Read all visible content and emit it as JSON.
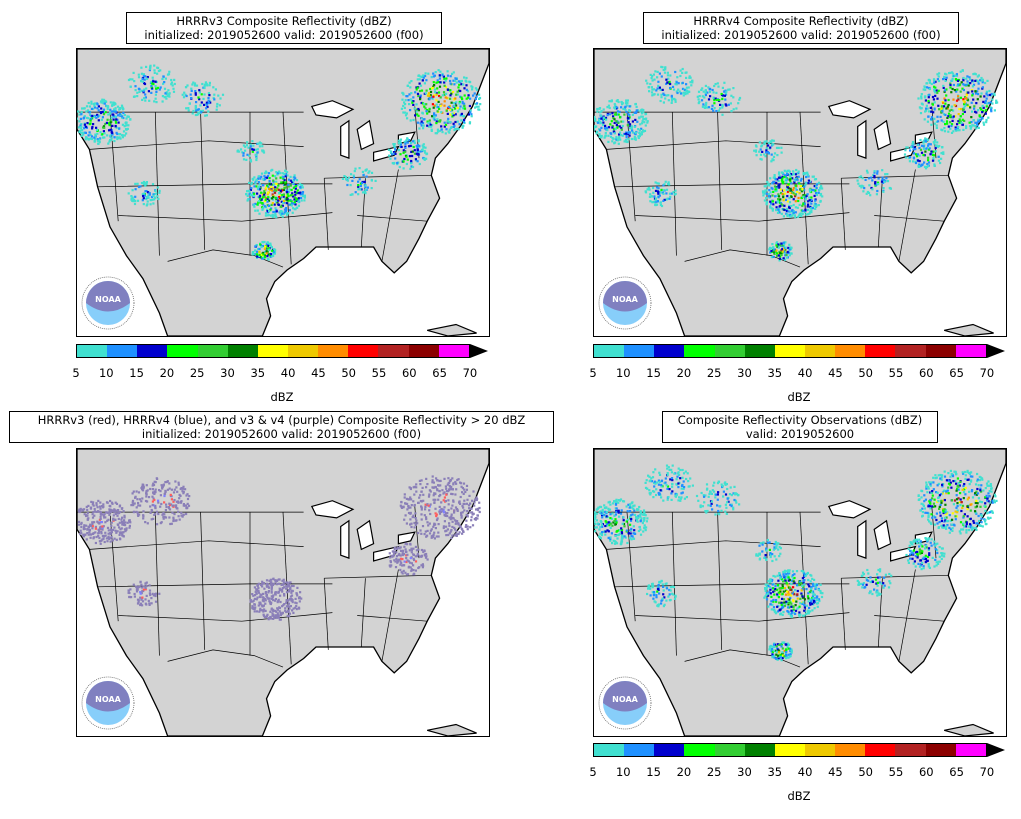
{
  "panels": [
    {
      "title_line1": "HRRRv3 Composite Reflectivity (dBZ)",
      "title_line2": "initialized: 2019052600 valid: 2019052600 (f00)",
      "style": "refl"
    },
    {
      "title_line1": "HRRRv4 Composite Reflectivity (dBZ)",
      "title_line2": "initialized: 2019052600 valid: 2019052600 (f00)",
      "style": "refl"
    },
    {
      "title_line1": "HRRRv3 (red), HRRRv4 (blue), and v3 & v4 (purple) Composite Reflectivity > 20 dBZ",
      "title_line2": "initialized: 2019052600 valid: 2019052600 (f00)",
      "style": "diff"
    },
    {
      "title_line1": "Composite Reflectivity Observations (dBZ)",
      "title_line2": "valid: 2019052600",
      "style": "refl"
    }
  ],
  "colorbar": {
    "unit": "dBZ",
    "ticks": [
      "5",
      "10",
      "15",
      "20",
      "25",
      "30",
      "35",
      "40",
      "45",
      "50",
      "55",
      "60",
      "65",
      "70"
    ],
    "colors": [
      "#40e0d0",
      "#1e90ff",
      "#0000cd",
      "#00ff00",
      "#32cd32",
      "#008000",
      "#ffff00",
      "#eec900",
      "#ff8c00",
      "#ff0000",
      "#b22222",
      "#8b0000",
      "#ff00ff"
    ]
  },
  "logo": {
    "text": "NOAA",
    "icon": "noaa-logo-icon"
  },
  "map_colors": {
    "land": "#d3d3d3",
    "water": "#ffffff",
    "border": "#000000",
    "red": "#ff5c5c",
    "blue": "#7f7fff",
    "purple": "#8a7fb8"
  }
}
